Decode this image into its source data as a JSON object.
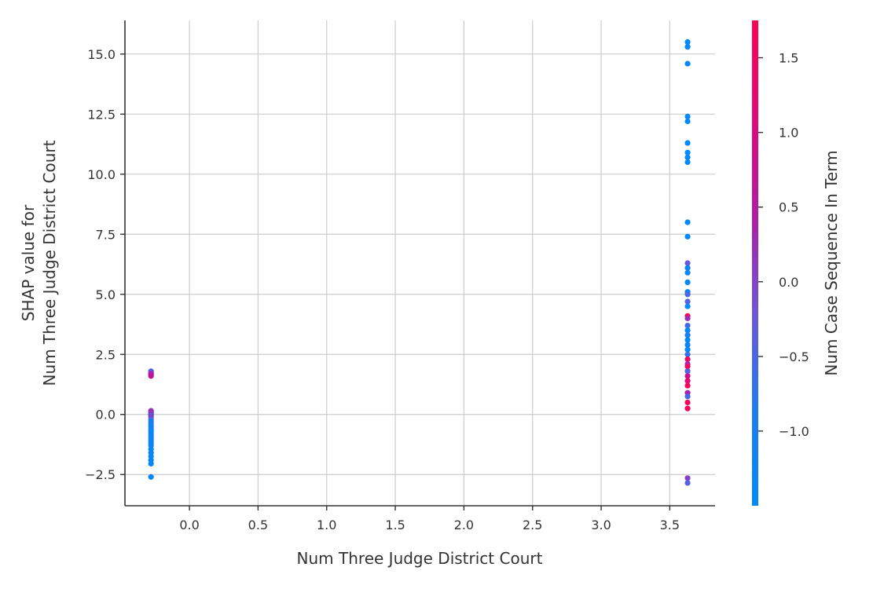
{
  "chart_data": {
    "type": "scatter",
    "xlabel": "Num  Three Judge District Court",
    "ylabel": [
      "SHAP value for",
      "Num  Three Judge District Court"
    ],
    "xlim": [
      -0.47,
      3.83
    ],
    "ylim": [
      -3.8,
      16.4
    ],
    "xticks": [
      0.0,
      0.5,
      1.0,
      1.5,
      2.0,
      2.5,
      3.0,
      3.5
    ],
    "xtick_labels": [
      "0.0",
      "0.5",
      "1.0",
      "1.5",
      "2.0",
      "2.5",
      "3.0",
      "3.5"
    ],
    "yticks": [
      -2.5,
      0.0,
      2.5,
      5.0,
      7.5,
      10.0,
      12.5,
      15.0
    ],
    "ytick_labels": [
      "−2.5",
      "0.0",
      "2.5",
      "5.0",
      "7.5",
      "10.0",
      "12.5",
      "15.0"
    ],
    "grid": true,
    "colorbar": {
      "label": "Num  Case Sequence In Term",
      "range": [
        -1.5,
        1.75
      ],
      "ticks": [
        -1.0,
        -0.5,
        0.0,
        0.5,
        1.0,
        1.5
      ],
      "tick_labels": [
        "−1.0",
        "−0.5",
        "0.0",
        "0.5",
        "1.0",
        "1.5"
      ],
      "colors": [
        "#008afb",
        "#1f7bf0",
        "#6f55d6",
        "#b01ca6",
        "#e0097a",
        "#ff0051"
      ]
    },
    "points": [
      {
        "x": -0.28,
        "y": 1.8,
        "c": -0.6
      },
      {
        "x": -0.28,
        "y": 1.75,
        "c": -0.3
      },
      {
        "x": -0.28,
        "y": 1.7,
        "c": 0.3
      },
      {
        "x": -0.28,
        "y": 1.65,
        "c": 0.5
      },
      {
        "x": -0.28,
        "y": 1.6,
        "c": 0.7
      },
      {
        "x": -0.28,
        "y": 0.15,
        "c": 0.2
      },
      {
        "x": -0.28,
        "y": 0.1,
        "c": 0.4
      },
      {
        "x": -0.28,
        "y": 0.05,
        "c": -0.2
      },
      {
        "x": -0.28,
        "y": 0.0,
        "c": 0.6
      },
      {
        "x": -0.28,
        "y": -0.05,
        "c": -0.8
      },
      {
        "x": -0.28,
        "y": -0.1,
        "c": 0.1
      },
      {
        "x": -0.28,
        "y": -0.2,
        "c": -0.5
      },
      {
        "x": -0.28,
        "y": -0.3,
        "c": -1.2
      },
      {
        "x": -0.28,
        "y": -0.4,
        "c": -0.9
      },
      {
        "x": -0.28,
        "y": -0.5,
        "c": -1.3
      },
      {
        "x": -0.28,
        "y": -0.6,
        "c": -1.1
      },
      {
        "x": -0.28,
        "y": -0.7,
        "c": -1.4
      },
      {
        "x": -0.28,
        "y": -0.8,
        "c": -1.3
      },
      {
        "x": -0.28,
        "y": -0.9,
        "c": -1.2
      },
      {
        "x": -0.28,
        "y": -1.0,
        "c": -1.4
      },
      {
        "x": -0.28,
        "y": -1.1,
        "c": -1.3
      },
      {
        "x": -0.28,
        "y": -1.2,
        "c": -1.4
      },
      {
        "x": -0.28,
        "y": -1.3,
        "c": -1.2
      },
      {
        "x": -0.28,
        "y": -1.45,
        "c": -1.4
      },
      {
        "x": -0.28,
        "y": -1.6,
        "c": -1.3
      },
      {
        "x": -0.28,
        "y": -1.75,
        "c": -1.4
      },
      {
        "x": -0.28,
        "y": -1.9,
        "c": -1.3
      },
      {
        "x": -0.28,
        "y": -2.05,
        "c": -1.4
      },
      {
        "x": -0.28,
        "y": -2.6,
        "c": -1.4
      },
      {
        "x": 3.63,
        "y": 15.5,
        "c": -1.4
      },
      {
        "x": 3.63,
        "y": 15.3,
        "c": -1.4
      },
      {
        "x": 3.63,
        "y": 14.6,
        "c": -1.4
      },
      {
        "x": 3.63,
        "y": 12.4,
        "c": -1.4
      },
      {
        "x": 3.63,
        "y": 12.2,
        "c": -1.4
      },
      {
        "x": 3.63,
        "y": 11.3,
        "c": -1.4
      },
      {
        "x": 3.63,
        "y": 10.9,
        "c": -1.4
      },
      {
        "x": 3.63,
        "y": 10.7,
        "c": -1.4
      },
      {
        "x": 3.63,
        "y": 10.5,
        "c": -1.4
      },
      {
        "x": 3.63,
        "y": 8.0,
        "c": -1.4
      },
      {
        "x": 3.63,
        "y": 7.4,
        "c": -1.4
      },
      {
        "x": 3.63,
        "y": 6.3,
        "c": -0.3
      },
      {
        "x": 3.63,
        "y": 6.1,
        "c": -1.2
      },
      {
        "x": 3.63,
        "y": 5.9,
        "c": -1.3
      },
      {
        "x": 3.63,
        "y": 5.5,
        "c": -1.4
      },
      {
        "x": 3.63,
        "y": 5.1,
        "c": -1.2
      },
      {
        "x": 3.63,
        "y": 5.0,
        "c": -0.5
      },
      {
        "x": 3.63,
        "y": 4.7,
        "c": -0.4
      },
      {
        "x": 3.63,
        "y": 4.5,
        "c": -1.4
      },
      {
        "x": 3.63,
        "y": 4.1,
        "c": 1.6
      },
      {
        "x": 3.63,
        "y": 4.0,
        "c": 0.2
      },
      {
        "x": 3.63,
        "y": 3.7,
        "c": -0.6
      },
      {
        "x": 3.63,
        "y": 3.5,
        "c": -1.3
      },
      {
        "x": 3.63,
        "y": 3.3,
        "c": -0.9
      },
      {
        "x": 3.63,
        "y": 3.1,
        "c": -1.4
      },
      {
        "x": 3.63,
        "y": 2.9,
        "c": -1.2
      },
      {
        "x": 3.63,
        "y": 2.7,
        "c": -1.4
      },
      {
        "x": 3.63,
        "y": 2.5,
        "c": -0.7
      },
      {
        "x": 3.63,
        "y": 2.3,
        "c": 1.3
      },
      {
        "x": 3.63,
        "y": 2.1,
        "c": 0.3
      },
      {
        "x": 3.63,
        "y": 2.0,
        "c": 1.5
      },
      {
        "x": 3.63,
        "y": 1.8,
        "c": -0.4
      },
      {
        "x": 3.63,
        "y": 1.6,
        "c": 0.8
      },
      {
        "x": 3.63,
        "y": 1.4,
        "c": 1.2
      },
      {
        "x": 3.63,
        "y": 1.2,
        "c": 1.6
      },
      {
        "x": 3.63,
        "y": 0.9,
        "c": 0.4
      },
      {
        "x": 3.63,
        "y": 0.75,
        "c": -0.5
      },
      {
        "x": 3.63,
        "y": 0.5,
        "c": 1.6
      },
      {
        "x": 3.63,
        "y": 0.25,
        "c": 1.7
      },
      {
        "x": 3.63,
        "y": -2.65,
        "c": 0.0
      },
      {
        "x": 3.63,
        "y": -2.85,
        "c": -0.4
      }
    ]
  }
}
